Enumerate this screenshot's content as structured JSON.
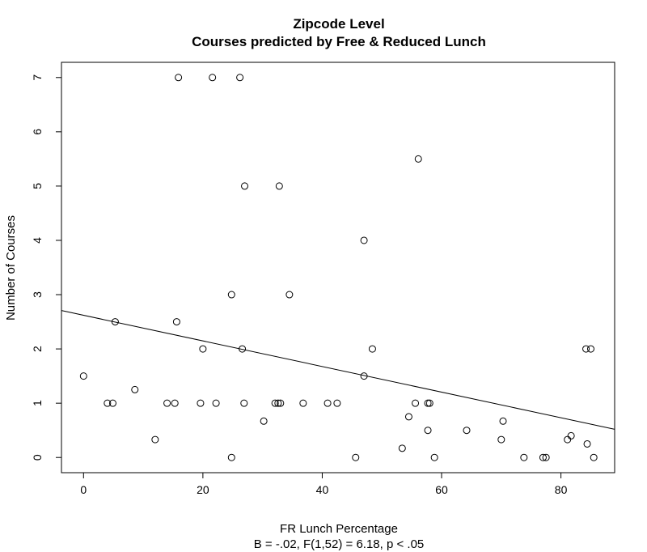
{
  "chart_data": {
    "type": "scatter",
    "title": "Zipcode Level",
    "subtitle": "Courses predicted by Free & Reduced Lunch",
    "xlabel": "FR Lunch Percentage",
    "xlabel_note": "B = -.02, F(1,52) = 6.18, p < .05",
    "ylabel": "Number of Courses",
    "xlim": [
      -3.7,
      89
    ],
    "ylim": [
      -0.28,
      7.28
    ],
    "x_ticks": [
      "0",
      "20",
      "40",
      "60",
      "80"
    ],
    "y_ticks": [
      "0",
      "1",
      "2",
      "3",
      "4",
      "5",
      "6",
      "7"
    ],
    "grid": false,
    "legend": "none",
    "points": [
      {
        "x": 0.0,
        "y": 1.5
      },
      {
        "x": 4.0,
        "y": 1.0
      },
      {
        "x": 4.9,
        "y": 1.0
      },
      {
        "x": 5.3,
        "y": 2.5
      },
      {
        "x": 8.6,
        "y": 1.25
      },
      {
        "x": 12.0,
        "y": 0.33
      },
      {
        "x": 14.0,
        "y": 1.0
      },
      {
        "x": 15.3,
        "y": 1.0
      },
      {
        "x": 15.6,
        "y": 2.5
      },
      {
        "x": 15.9,
        "y": 7.0
      },
      {
        "x": 19.6,
        "y": 1.0
      },
      {
        "x": 20.0,
        "y": 2.0
      },
      {
        "x": 21.6,
        "y": 7.0
      },
      {
        "x": 22.2,
        "y": 1.0
      },
      {
        "x": 24.8,
        "y": 3.0
      },
      {
        "x": 24.8,
        "y": 0.0
      },
      {
        "x": 26.2,
        "y": 7.0
      },
      {
        "x": 26.6,
        "y": 2.0
      },
      {
        "x": 26.9,
        "y": 1.0
      },
      {
        "x": 27.0,
        "y": 5.0
      },
      {
        "x": 30.2,
        "y": 0.67
      },
      {
        "x": 32.1,
        "y": 1.0
      },
      {
        "x": 32.6,
        "y": 1.0
      },
      {
        "x": 32.8,
        "y": 5.0
      },
      {
        "x": 33.0,
        "y": 1.0
      },
      {
        "x": 34.5,
        "y": 3.0
      },
      {
        "x": 36.8,
        "y": 1.0
      },
      {
        "x": 40.9,
        "y": 1.0
      },
      {
        "x": 42.5,
        "y": 1.0
      },
      {
        "x": 45.6,
        "y": 0.0
      },
      {
        "x": 47.0,
        "y": 4.0
      },
      {
        "x": 47.0,
        "y": 1.5
      },
      {
        "x": 48.4,
        "y": 2.0
      },
      {
        "x": 53.4,
        "y": 0.17
      },
      {
        "x": 54.5,
        "y": 0.75
      },
      {
        "x": 55.6,
        "y": 1.0
      },
      {
        "x": 56.1,
        "y": 5.5
      },
      {
        "x": 57.7,
        "y": 0.5
      },
      {
        "x": 57.7,
        "y": 1.0
      },
      {
        "x": 58.0,
        "y": 1.0
      },
      {
        "x": 58.8,
        "y": 0.0
      },
      {
        "x": 64.2,
        "y": 0.5
      },
      {
        "x": 70.0,
        "y": 0.33
      },
      {
        "x": 70.3,
        "y": 0.67
      },
      {
        "x": 73.8,
        "y": 0.0
      },
      {
        "x": 77.0,
        "y": 0.0
      },
      {
        "x": 77.5,
        "y": 0.0
      },
      {
        "x": 81.1,
        "y": 0.33
      },
      {
        "x": 81.7,
        "y": 0.4
      },
      {
        "x": 84.2,
        "y": 2.0
      },
      {
        "x": 84.4,
        "y": 0.25
      },
      {
        "x": 85.0,
        "y": 2.0
      },
      {
        "x": 85.5,
        "y": 0.0
      }
    ],
    "fit_line": {
      "intercept": 2.62,
      "slope": -0.0236
    }
  }
}
